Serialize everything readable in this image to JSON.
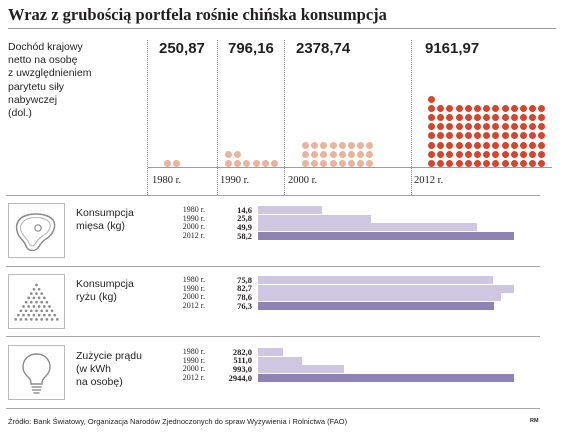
{
  "title": "Wraz z grubością portfela rośnie chińska konsumpcja",
  "income_description": "Dochód krajowy\nnetto na osobę\nz uwzględnieniem\nparytetu siły\nnabywczej\n(dol.)",
  "source": "Źródło: Bank Światowy, Organizacja Narodów Zjednoczonych do spraw Wyżywienia i Rolnictwa (FAO)",
  "credit": "RM",
  "colors": {
    "dot_light": "#e9b39c",
    "dot_dark": "#d5452e",
    "bar_light": "#cfc6e1",
    "bar_dark": "#8f82b4",
    "rule": "#a6a6a6"
  },
  "chart_data": [
    {
      "type": "scatter",
      "ylabel": "Dochód krajowy netto na osobę z uwzględnieniem parytetu siły nabywczej (dol.)",
      "categories": [
        "1980 r.",
        "1990 r.",
        "2000 r.",
        "2012 r."
      ],
      "values": [
        250.87,
        796.16,
        2378.74,
        9161.97
      ],
      "value_labels": [
        "250,87",
        "796,16",
        "2378,74",
        "9161,97"
      ],
      "dot_counts": [
        2,
        8,
        24,
        92
      ]
    },
    {
      "type": "bar",
      "title": "Konsumpcja mięsa (kg)",
      "icon": "meat-steak-icon",
      "categories": [
        "1980 r.",
        "1990 r.",
        "2000 r.",
        "2012 r."
      ],
      "values": [
        14.6,
        25.8,
        49.9,
        58.2
      ],
      "value_labels": [
        "14,6",
        "25,8",
        "49,9",
        "58,2"
      ]
    },
    {
      "type": "bar",
      "title": "Konsumpcja ryżu (kg)",
      "icon": "rice-pile-icon",
      "categories": [
        "1980 r.",
        "1990 r.",
        "2000 r.",
        "2012 r."
      ],
      "values": [
        75.8,
        82.7,
        78.6,
        76.3
      ],
      "value_labels": [
        "75,8",
        "82,7",
        "78,6",
        "76,3"
      ]
    },
    {
      "type": "bar",
      "title": "Zużycie prądu (w kWh na osobę)",
      "icon": "light-bulb-icon",
      "categories": [
        "1980 r.",
        "1990 r.",
        "2000 r.",
        "2012 r."
      ],
      "values": [
        282.0,
        511.0,
        993.0,
        2944.0
      ],
      "value_labels": [
        "282,0",
        "511,0",
        "993,0",
        "2944,0"
      ]
    }
  ],
  "rows": [
    {
      "label": "Konsumpcja\nmięsa (kg)"
    },
    {
      "label": "Konsumpcja\nryżu (kg)"
    },
    {
      "label": "Zużycie prądu\n(w kWh\nna osobę)"
    }
  ]
}
